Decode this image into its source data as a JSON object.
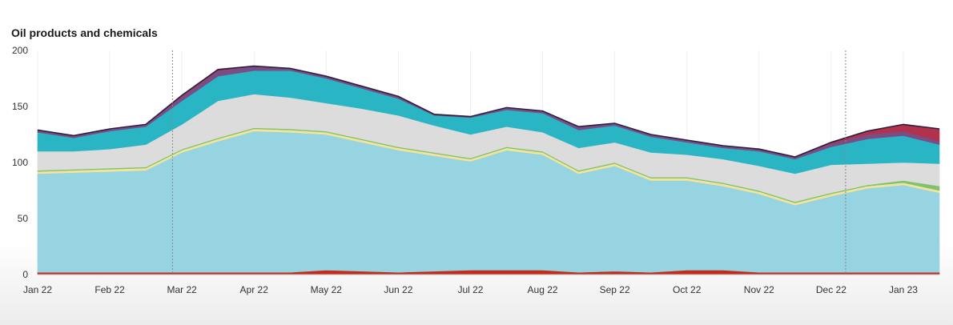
{
  "chart_data": {
    "type": "area",
    "stacked": true,
    "title": "Oil products and chemicals",
    "xlabel": "",
    "ylabel": "",
    "ylim": [
      0,
      200
    ],
    "yticks": [
      0,
      50,
      100,
      150,
      200
    ],
    "x_tick_labels": [
      "Jan 22",
      "Feb 22",
      "Mar 22",
      "Apr 22",
      "May 22",
      "Jun 22",
      "Jul 22",
      "Aug 22",
      "Sep 22",
      "Oct 22",
      "Nov 22",
      "Dec 22",
      "Jan 23"
    ],
    "x": [
      0,
      0.5,
      1,
      1.5,
      2,
      2.5,
      3,
      3.5,
      4,
      4.5,
      5,
      5.5,
      6,
      6.5,
      7,
      7.5,
      8,
      8.5,
      9,
      9.5,
      10,
      10.5,
      11,
      11.5,
      12,
      12.5
    ],
    "reference_lines_at_x": [
      1.87,
      11.2
    ],
    "grid": "x",
    "legend": "none",
    "series": [
      {
        "name": "Red",
        "color": "#c32b1d",
        "values": [
          2,
          2,
          2,
          2,
          2,
          2,
          2,
          2,
          4,
          3,
          2,
          3,
          4,
          4,
          4,
          2,
          3,
          2,
          4,
          4,
          2,
          2,
          2,
          2,
          2,
          2
        ]
      },
      {
        "name": "Light blue",
        "color": "#95d4e0",
        "values": [
          88,
          89,
          90,
          91,
          107,
          117,
          126,
          125,
          121,
          115,
          109,
          103,
          97,
          107,
          103,
          88,
          94,
          82,
          80,
          75,
          70,
          60,
          68,
          75,
          78,
          71
        ]
      },
      {
        "name": "Light yellow",
        "color": "#f6e39b",
        "values": [
          2,
          2,
          2,
          2,
          2,
          2,
          2,
          2,
          2,
          2,
          2,
          2,
          2,
          2,
          2,
          2,
          2,
          2,
          2,
          2,
          2,
          2,
          2,
          2,
          2,
          2
        ]
      },
      {
        "name": "Green",
        "color": "#7ec46f",
        "values": [
          1,
          1,
          1,
          1,
          1,
          1,
          1,
          1,
          1,
          1,
          1,
          1,
          1,
          1,
          1,
          1,
          1,
          1,
          1,
          1,
          1,
          1,
          1,
          1,
          2,
          4
        ]
      },
      {
        "name": "Light grey",
        "color": "#dcdcdc",
        "values": [
          17,
          16,
          17,
          20,
          22,
          33,
          30,
          28,
          25,
          27,
          28,
          24,
          21,
          18,
          17,
          20,
          18,
          22,
          20,
          21,
          22,
          25,
          25,
          19,
          16,
          20
        ]
      },
      {
        "name": "Teal",
        "color": "#29b5c4",
        "values": [
          17,
          12,
          16,
          16,
          21,
          22,
          21,
          24,
          22,
          18,
          15,
          9,
          15,
          15,
          17,
          16,
          15,
          14,
          11,
          10,
          13,
          13,
          16,
          22,
          24,
          17
        ]
      },
      {
        "name": "Purple",
        "color": "#7b4d84",
        "values": [
          2,
          2,
          2,
          2,
          4,
          5,
          4,
          2,
          2,
          2,
          2,
          1,
          1,
          2,
          2,
          3,
          2,
          2,
          2,
          2,
          2,
          2,
          3,
          4,
          4,
          3
        ]
      },
      {
        "name": "Crimson",
        "color": "#b2314d",
        "values": [
          0,
          0,
          0,
          0,
          1,
          1,
          0,
          0,
          0,
          0,
          0,
          0,
          0,
          0,
          0,
          0,
          0,
          0,
          0,
          0,
          0,
          0,
          1,
          3,
          6,
          11
        ]
      }
    ]
  }
}
